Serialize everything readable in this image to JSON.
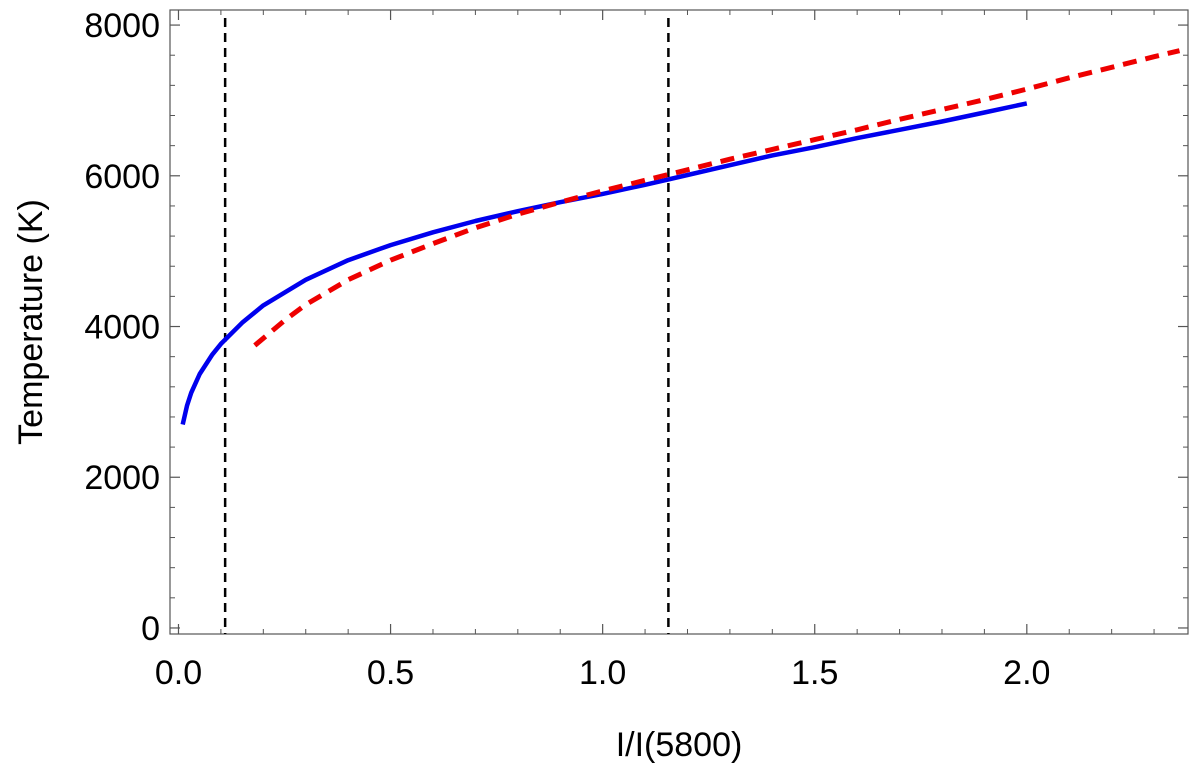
{
  "chart_data": {
    "type": "line",
    "title": "",
    "xlabel": "I/I(5800)",
    "ylabel": "Temperature  (K)",
    "xlim": [
      -0.02,
      2.38
    ],
    "ylim": [
      -80,
      8200
    ],
    "x_ticks": [
      0.0,
      0.5,
      1.0,
      1.5,
      2.0
    ],
    "x_tick_labels": [
      "0.0",
      "0.5",
      "1.0",
      "1.5",
      "2.0"
    ],
    "y_ticks": [
      0,
      2000,
      4000,
      6000,
      8000
    ],
    "y_tick_labels": [
      "0",
      "2000",
      "4000",
      "6000",
      "8000"
    ],
    "grid": false,
    "legend": "none",
    "series": [
      {
        "color": "#0000ee",
        "style": "solid",
        "x": [
          0.01,
          0.02,
          0.03,
          0.05,
          0.08,
          0.1,
          0.15,
          0.2,
          0.3,
          0.4,
          0.5,
          0.6,
          0.7,
          0.8,
          0.9,
          1.0,
          1.1,
          1.2,
          1.3,
          1.4,
          1.5,
          1.6,
          1.7,
          1.8,
          1.9,
          2.0
        ],
        "y": [
          2700,
          2950,
          3120,
          3370,
          3630,
          3770,
          4050,
          4280,
          4620,
          4880,
          5080,
          5250,
          5400,
          5530,
          5650,
          5760,
          5880,
          6010,
          6140,
          6270,
          6380,
          6500,
          6610,
          6720,
          6840,
          6960
        ]
      },
      {
        "color": "#ee0000",
        "style": "dashed",
        "x": [
          0.18,
          0.25,
          0.3,
          0.4,
          0.5,
          0.6,
          0.7,
          0.8,
          0.9,
          1.0,
          1.1,
          1.2,
          1.3,
          1.4,
          1.5,
          1.6,
          1.7,
          1.8,
          1.9,
          2.0,
          2.1,
          2.2,
          2.3,
          2.36
        ],
        "y": [
          3750,
          4080,
          4290,
          4620,
          4880,
          5100,
          5310,
          5490,
          5650,
          5800,
          5940,
          6080,
          6220,
          6350,
          6480,
          6610,
          6750,
          6880,
          7010,
          7150,
          7300,
          7440,
          7580,
          7660
        ]
      }
    ],
    "vertical_lines": [
      {
        "x": 0.11,
        "color": "#000000",
        "style": "dashed"
      },
      {
        "x": 1.155,
        "color": "#000000",
        "style": "dashed"
      }
    ]
  }
}
